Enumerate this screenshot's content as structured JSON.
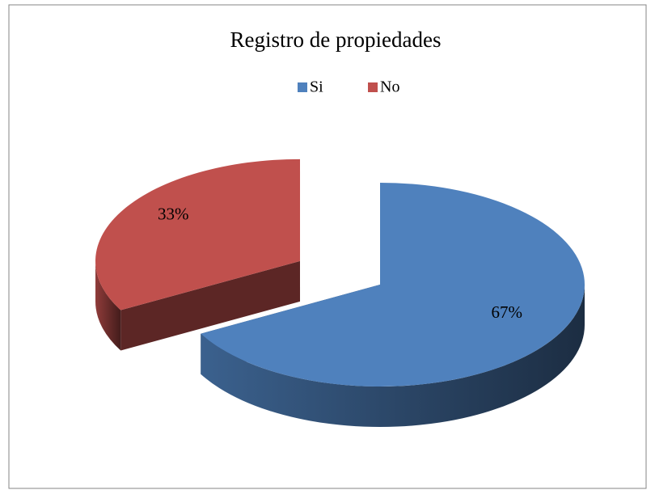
{
  "chart_data": {
    "type": "pie",
    "title": "Registro de propiedades",
    "categories": [
      "Si",
      "No"
    ],
    "values": [
      67,
      33
    ],
    "value_labels": [
      "67%",
      "33%"
    ],
    "colors": [
      "#4f81bd",
      "#c0504d"
    ],
    "legend": "top"
  }
}
